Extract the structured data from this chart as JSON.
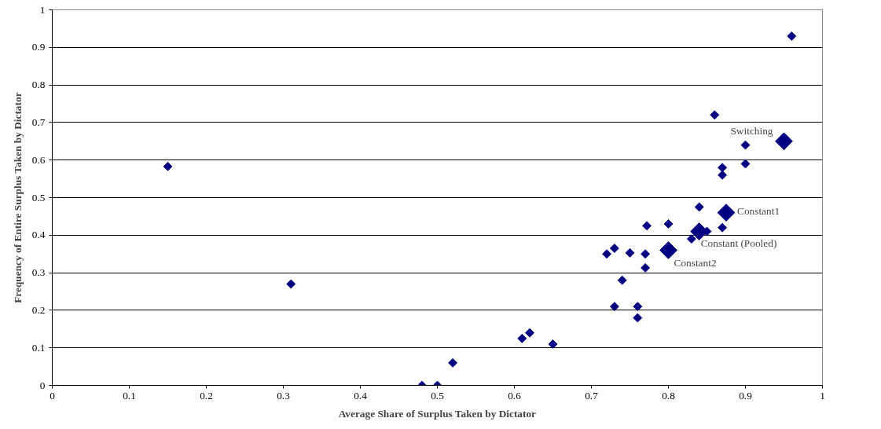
{
  "chart_data": {
    "type": "scatter",
    "xlabel": "Average Share of Surplus Taken by Dictator",
    "ylabel": "Frequency of Entire Surplus Taken by Dictator",
    "xlim": [
      0,
      1
    ],
    "ylim": [
      0,
      1
    ],
    "xticks": [
      0,
      0.1,
      0.2,
      0.3,
      0.4,
      0.5,
      0.6,
      0.7,
      0.8,
      0.9,
      1
    ],
    "yticks": [
      0,
      0.1,
      0.2,
      0.3,
      0.4,
      0.5,
      0.6,
      0.7,
      0.8,
      0.9,
      1
    ],
    "grid": "y",
    "marker": "diamond",
    "series": [
      {
        "color": "#000080",
        "x": [
          0.15,
          0.31,
          0.48,
          0.5,
          0.52,
          0.61,
          0.62,
          0.65,
          0.72,
          0.73,
          0.73,
          0.74,
          0.75,
          0.76,
          0.76,
          0.77,
          0.77,
          0.772,
          0.8,
          0.83,
          0.84,
          0.85,
          0.86,
          0.87,
          0.87,
          0.87,
          0.9,
          0.9,
          0.96
        ],
        "values": [
          0.583,
          0.27,
          0,
          0,
          0.06,
          0.125,
          0.14,
          0.11,
          0.35,
          0.365,
          0.21,
          0.28,
          0.353,
          0.21,
          0.18,
          0.35,
          0.313,
          0.425,
          0.43,
          0.39,
          0.475,
          0.41,
          0.72,
          0.58,
          0.56,
          0.42,
          0.64,
          0.59,
          0.93
        ]
      },
      {
        "color": "#000080",
        "x": [
          0.95,
          0.875,
          0.84,
          0.8
        ],
        "values": [
          0.65,
          0.46,
          0.41,
          0.36
        ]
      }
    ],
    "annotations": [
      {
        "text": "Switching",
        "x": 0.95,
        "y": 0.65
      },
      {
        "text": "Constant1",
        "x": 0.875,
        "y": 0.46
      },
      {
        "text": "Constant (Pooled)",
        "x": 0.84,
        "y": 0.41
      },
      {
        "text": "Constant2",
        "x": 0.8,
        "y": 0.36
      }
    ]
  }
}
